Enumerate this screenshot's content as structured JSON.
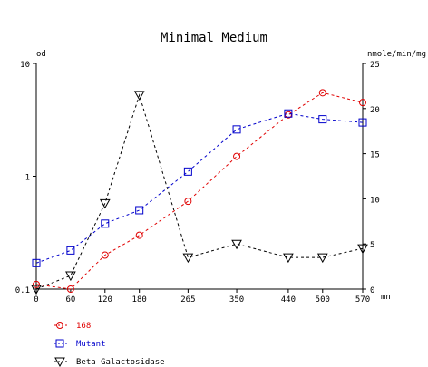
{
  "chart_data": {
    "type": "line",
    "title": "Minimal Medium",
    "x": [
      0,
      60,
      120,
      180,
      265,
      350,
      440,
      500,
      570
    ],
    "x_tick_labels": [
      "0",
      "60",
      "120",
      "180",
      "265",
      "350",
      "440",
      "500",
      "570"
    ],
    "x_unit": "mn",
    "y_left": {
      "label": "od",
      "scale": "log",
      "range": [
        0.1,
        10
      ],
      "tick_labels": [
        "0.1",
        "1",
        "10"
      ]
    },
    "y_right": {
      "label": "nmole/min/mg",
      "scale": "linear",
      "range": [
        0,
        25
      ],
      "tick_labels": [
        "0",
        "5",
        "10",
        "15",
        "20",
        "25"
      ]
    },
    "grid": false,
    "legend_position": "bottom-left",
    "series": [
      {
        "name": "168",
        "axis": "left",
        "marker": "circle",
        "color": "#e00000",
        "values": [
          0.11,
          0.1,
          0.2,
          0.3,
          0.6,
          1.5,
          3.5,
          5.5,
          4.5
        ]
      },
      {
        "name": "Mutant",
        "axis": "left",
        "marker": "square",
        "color": "#0000cc",
        "values": [
          0.17,
          0.22,
          0.38,
          0.5,
          1.1,
          2.6,
          3.6,
          3.2,
          3.0
        ]
      },
      {
        "name": "Beta Galactosidase",
        "axis": "right",
        "marker": "triangle-down",
        "color": "#000000",
        "values": [
          0,
          1.5,
          9.5,
          21.5,
          3.5,
          5.0,
          3.5,
          3.5,
          4.5
        ]
      }
    ]
  }
}
